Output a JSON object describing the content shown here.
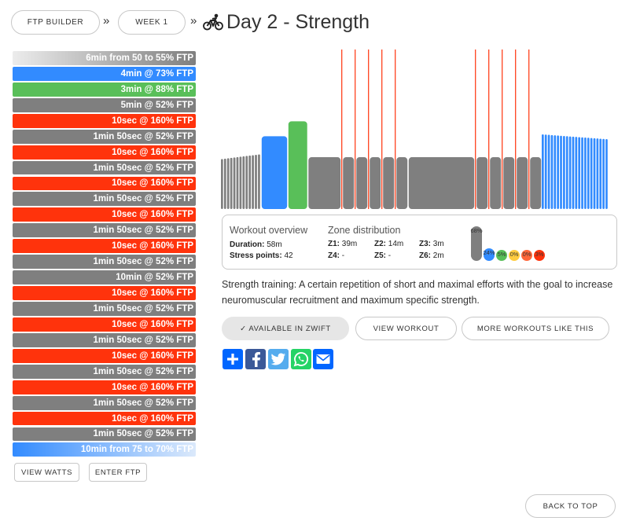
{
  "breadcrumb": {
    "items": [
      "FTP BUILDER",
      "WEEK 1"
    ],
    "separator": "»",
    "title": "Day 2 - Strength"
  },
  "steps": [
    {
      "label": "6min from 50 to 55% FTP",
      "color": "#7f7f7f",
      "fill": "gradient-left-fade"
    },
    {
      "label": "4min @ 73% FTP",
      "color": "#328bff"
    },
    {
      "label": "3min @ 88% FTP",
      "color": "#59bf59"
    },
    {
      "label": "5min @ 52% FTP",
      "color": "#7f7f7f"
    },
    {
      "label": "10sec @ 160% FTP",
      "color": "#ff330c"
    },
    {
      "label": "1min 50sec @ 52% FTP",
      "color": "#7f7f7f"
    },
    {
      "label": "10sec @ 160% FTP",
      "color": "#ff330c"
    },
    {
      "label": "1min 50sec @ 52% FTP",
      "color": "#7f7f7f"
    },
    {
      "label": "10sec @ 160% FTP",
      "color": "#ff330c"
    },
    {
      "label": "1min 50sec @ 52% FTP",
      "color": "#7f7f7f"
    },
    {
      "label": "10sec @ 160% FTP",
      "color": "#ff330c"
    },
    {
      "label": "1min 50sec @ 52% FTP",
      "color": "#7f7f7f"
    },
    {
      "label": "10sec @ 160% FTP",
      "color": "#ff330c"
    },
    {
      "label": "1min 50sec @ 52% FTP",
      "color": "#7f7f7f"
    },
    {
      "label": "10min @ 52% FTP",
      "color": "#7f7f7f"
    },
    {
      "label": "10sec @ 160% FTP",
      "color": "#ff330c"
    },
    {
      "label": "1min 50sec @ 52% FTP",
      "color": "#7f7f7f"
    },
    {
      "label": "10sec @ 160% FTP",
      "color": "#ff330c"
    },
    {
      "label": "1min 50sec @ 52% FTP",
      "color": "#7f7f7f"
    },
    {
      "label": "10sec @ 160% FTP",
      "color": "#ff330c"
    },
    {
      "label": "1min 50sec @ 52% FTP",
      "color": "#7f7f7f"
    },
    {
      "label": "10sec @ 160% FTP",
      "color": "#ff330c"
    },
    {
      "label": "1min 50sec @ 52% FTP",
      "color": "#7f7f7f"
    },
    {
      "label": "10sec @ 160% FTP",
      "color": "#ff330c"
    },
    {
      "label": "1min 50sec @ 52% FTP",
      "color": "#7f7f7f"
    },
    {
      "label": "10min from 75 to 70% FTP",
      "color": "#328bff",
      "fill": "gradient-right-fade"
    }
  ],
  "left_buttons": {
    "view_watts": "VIEW WATTS",
    "enter_ftp": "ENTER FTP"
  },
  "chart_data": {
    "type": "bar",
    "description_units": "minutes vs % FTP",
    "segments": [
      {
        "duration_min": 6,
        "ftp_start": 50,
        "ftp_end": 55,
        "zone": "Z1",
        "ramp": true
      },
      {
        "duration_min": 4,
        "ftp": 73,
        "zone": "Z2"
      },
      {
        "duration_min": 3,
        "ftp": 88,
        "zone": "Z3"
      },
      {
        "duration_min": 5,
        "ftp": 52,
        "zone": "Z1"
      },
      {
        "duration_min": 0.1667,
        "ftp": 160,
        "zone": "Z6"
      },
      {
        "duration_min": 1.8333,
        "ftp": 52,
        "zone": "Z1"
      },
      {
        "duration_min": 0.1667,
        "ftp": 160,
        "zone": "Z6"
      },
      {
        "duration_min": 1.8333,
        "ftp": 52,
        "zone": "Z1"
      },
      {
        "duration_min": 0.1667,
        "ftp": 160,
        "zone": "Z6"
      },
      {
        "duration_min": 1.8333,
        "ftp": 52,
        "zone": "Z1"
      },
      {
        "duration_min": 0.1667,
        "ftp": 160,
        "zone": "Z6"
      },
      {
        "duration_min": 1.8333,
        "ftp": 52,
        "zone": "Z1"
      },
      {
        "duration_min": 0.1667,
        "ftp": 160,
        "zone": "Z6"
      },
      {
        "duration_min": 1.8333,
        "ftp": 52,
        "zone": "Z1"
      },
      {
        "duration_min": 10,
        "ftp": 52,
        "zone": "Z1"
      },
      {
        "duration_min": 0.1667,
        "ftp": 160,
        "zone": "Z6"
      },
      {
        "duration_min": 1.8333,
        "ftp": 52,
        "zone": "Z1"
      },
      {
        "duration_min": 0.1667,
        "ftp": 160,
        "zone": "Z6"
      },
      {
        "duration_min": 1.8333,
        "ftp": 52,
        "zone": "Z1"
      },
      {
        "duration_min": 0.1667,
        "ftp": 160,
        "zone": "Z6"
      },
      {
        "duration_min": 1.8333,
        "ftp": 52,
        "zone": "Z1"
      },
      {
        "duration_min": 0.1667,
        "ftp": 160,
        "zone": "Z6"
      },
      {
        "duration_min": 1.8333,
        "ftp": 52,
        "zone": "Z1"
      },
      {
        "duration_min": 0.1667,
        "ftp": 160,
        "zone": "Z6"
      },
      {
        "duration_min": 1.8333,
        "ftp": 52,
        "zone": "Z1"
      },
      {
        "duration_min": 10,
        "ftp_start": 75,
        "ftp_end": 70,
        "zone": "Z2",
        "ramp": true
      }
    ],
    "zone_colors": {
      "Z1": "#7f7f7f",
      "Z2": "#328bff",
      "Z3": "#59bf59",
      "Z6": "#ff330c"
    },
    "y_max_ftp": 160
  },
  "overview": {
    "title": "Workout overview",
    "duration_label": "Duration:",
    "duration_value": "58m",
    "stress_label": "Stress points:",
    "stress_value": "42"
  },
  "zones": {
    "title": "Zone distribution",
    "items": [
      {
        "label": "Z1:",
        "value": "39m"
      },
      {
        "label": "Z2:",
        "value": "14m"
      },
      {
        "label": "Z3:",
        "value": "3m"
      },
      {
        "label": "Z4:",
        "value": "-"
      },
      {
        "label": "Z5:",
        "value": "-"
      },
      {
        "label": "Z6:",
        "value": "2m"
      }
    ],
    "pills": [
      {
        "pct": "68%",
        "value": 68,
        "color": "#7f7f7f"
      },
      {
        "pct": "24%",
        "value": 24,
        "color": "#328bff"
      },
      {
        "pct": "5%",
        "value": 5,
        "color": "#59bf59"
      },
      {
        "pct": "0%",
        "value": 0,
        "color": "#ffcc3f"
      },
      {
        "pct": "0%",
        "value": 0,
        "color": "#ff6639"
      },
      {
        "pct": "3%",
        "value": 3,
        "color": "#ff330c"
      }
    ]
  },
  "description": "Strength training: A certain repetition of short and maximal efforts with the goal to increase neuromuscular recruitment and maximum specific strength.",
  "actions": {
    "zwift": "✓ AVAILABLE IN ZWIFT",
    "view_workout": "VIEW WORKOUT",
    "more_like": "MORE WORKOUTS LIKE THIS"
  },
  "share": [
    {
      "icon": "plus-share-icon",
      "color": "#0066ff"
    },
    {
      "icon": "facebook-icon",
      "color": "#3b5998"
    },
    {
      "icon": "twitter-icon",
      "color": "#55acee"
    },
    {
      "icon": "whatsapp-icon",
      "color": "#25d366"
    },
    {
      "icon": "email-icon",
      "color": "#0166ff"
    }
  ],
  "back_to_top": "BACK TO TOP"
}
